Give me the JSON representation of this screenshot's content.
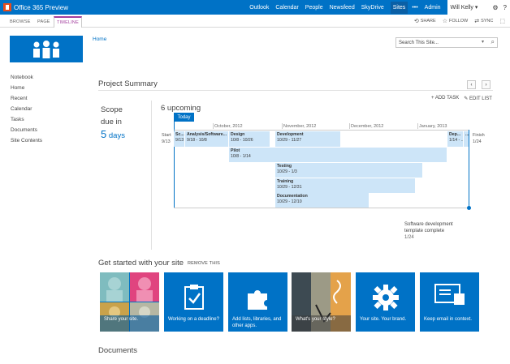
{
  "suitebar": {
    "brand": "Office 365 Preview",
    "links": [
      "Outlook",
      "Calendar",
      "People",
      "Newsfeed",
      "SkyDrive",
      "Sites"
    ],
    "more": "•••",
    "admin": "Admin",
    "user": "Will Kelly",
    "colors": {
      "bar": "#0072c6"
    }
  },
  "ribbon": {
    "tabs": [
      "BROWSE",
      "PAGE",
      "TIMELINE"
    ],
    "selected_tab": "TIMELINE",
    "actions": [
      "SHARE",
      "FOLLOW",
      "SYNC"
    ]
  },
  "breadcrumb": "Home",
  "search": {
    "placeholder": "Search This Site..."
  },
  "nav": [
    "Notebook",
    "Home",
    "Recent",
    "Calendar",
    "Tasks",
    "Documents",
    "Site Contents"
  ],
  "project_summary": {
    "title": "Project Summary",
    "scope_line1": "Scope",
    "scope_line2": "due in",
    "scope_num": "5",
    "scope_unit": "days",
    "upcoming": "6 upcoming",
    "add_task": "+ ADD TASK",
    "edit_list": "✎ EDIT LIST",
    "today": "Today",
    "start_label": "Start",
    "start_date": "9/13",
    "finish_label": "Finish",
    "finish_date": "1/24",
    "months": [
      "October, 2012",
      "November, 2012",
      "December, 2012",
      "January, 2013"
    ],
    "tasks": [
      {
        "name": "Sc...",
        "dates": "9/13"
      },
      {
        "name": "Analysis/Software...",
        "dates": "9/18 - 10/8"
      },
      {
        "name": "Design",
        "dates": "10/8 - 10/26"
      },
      {
        "name": "Development",
        "dates": "10/29 - 11/27"
      },
      {
        "name": "Dep...",
        "dates": "1/14 - ..."
      },
      {
        "name": "...",
        "dates": ""
      },
      {
        "name": "Pilot",
        "dates": "10/8 - 1/14"
      },
      {
        "name": "Testing",
        "dates": "10/29 - 1/3"
      },
      {
        "name": "Training",
        "dates": "10/29 - 12/31"
      },
      {
        "name": "Documentation",
        "dates": "10/29 - 12/10"
      }
    ],
    "callout_line1": "Software development",
    "callout_line2": "template complete",
    "callout_date": "1/24"
  },
  "get_started": {
    "title": "Get started with your site",
    "remove": "REMOVE THIS",
    "tiles": [
      {
        "caption": "Share your site.",
        "icon": "people-icon"
      },
      {
        "caption": "Working on a deadline?",
        "icon": "clipboard-check-icon"
      },
      {
        "caption": "Add lists, libraries, and other apps.",
        "icon": "puzzle-icon"
      },
      {
        "caption": "What's your style?",
        "icon": "style-photo-icon"
      },
      {
        "caption": "Your site. Your brand.",
        "icon": "gear-icon"
      },
      {
        "caption": "Keep email in context.",
        "icon": "email-icon"
      }
    ]
  },
  "documents_title": "Documents"
}
